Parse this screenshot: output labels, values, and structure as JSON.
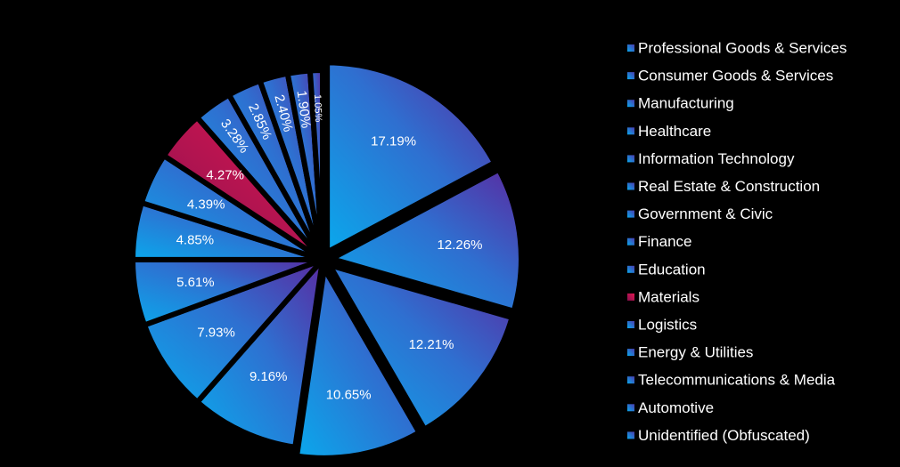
{
  "chart_data": {
    "type": "pie",
    "title": "",
    "slices": [
      {
        "label": "Professional Goods & Services",
        "value": 17.19,
        "value_label": "17.19%"
      },
      {
        "label": "Consumer Goods & Services",
        "value": 12.26,
        "value_label": "12.26%"
      },
      {
        "label": "Manufacturing",
        "value": 12.21,
        "value_label": "12.21%"
      },
      {
        "label": "Healthcare",
        "value": 10.65,
        "value_label": "10.65%"
      },
      {
        "label": "Information Technology",
        "value": 9.16,
        "value_label": "9.16%"
      },
      {
        "label": "Real Estate & Construction",
        "value": 7.93,
        "value_label": "7.93%"
      },
      {
        "label": "Government & Civic",
        "value": 5.61,
        "value_label": "5.61%"
      },
      {
        "label": "Finance",
        "value": 4.85,
        "value_label": "4.85%"
      },
      {
        "label": "Education",
        "value": 4.39,
        "value_label": "4.39%"
      },
      {
        "label": "Materials",
        "value": 4.27,
        "value_label": "4.27%"
      },
      {
        "label": "Logistics",
        "value": 3.28,
        "value_label": "3.28%"
      },
      {
        "label": "Energy & Utilities",
        "value": 2.85,
        "value_label": "2.85%"
      },
      {
        "label": "Telecommunications & Media",
        "value": 2.4,
        "value_label": "2.40%"
      },
      {
        "label": "Automotive",
        "value": 1.9,
        "value_label": "1.90%"
      },
      {
        "label": "Unidentified (Obfuscated)",
        "value": 1.05,
        "value_label": "1.05%"
      }
    ],
    "highlight": "Materials",
    "legend_position": "right",
    "colors": {
      "background": "#000000",
      "gradient_light": "#0aa8ec",
      "gradient_mid": "#2f6fd0",
      "gradient_dark": "#5a2aa0",
      "highlight_light": "#e01850",
      "highlight_dark": "#8a1050",
      "label_text": "#ffffff",
      "legend_text": "#ffffff"
    }
  }
}
